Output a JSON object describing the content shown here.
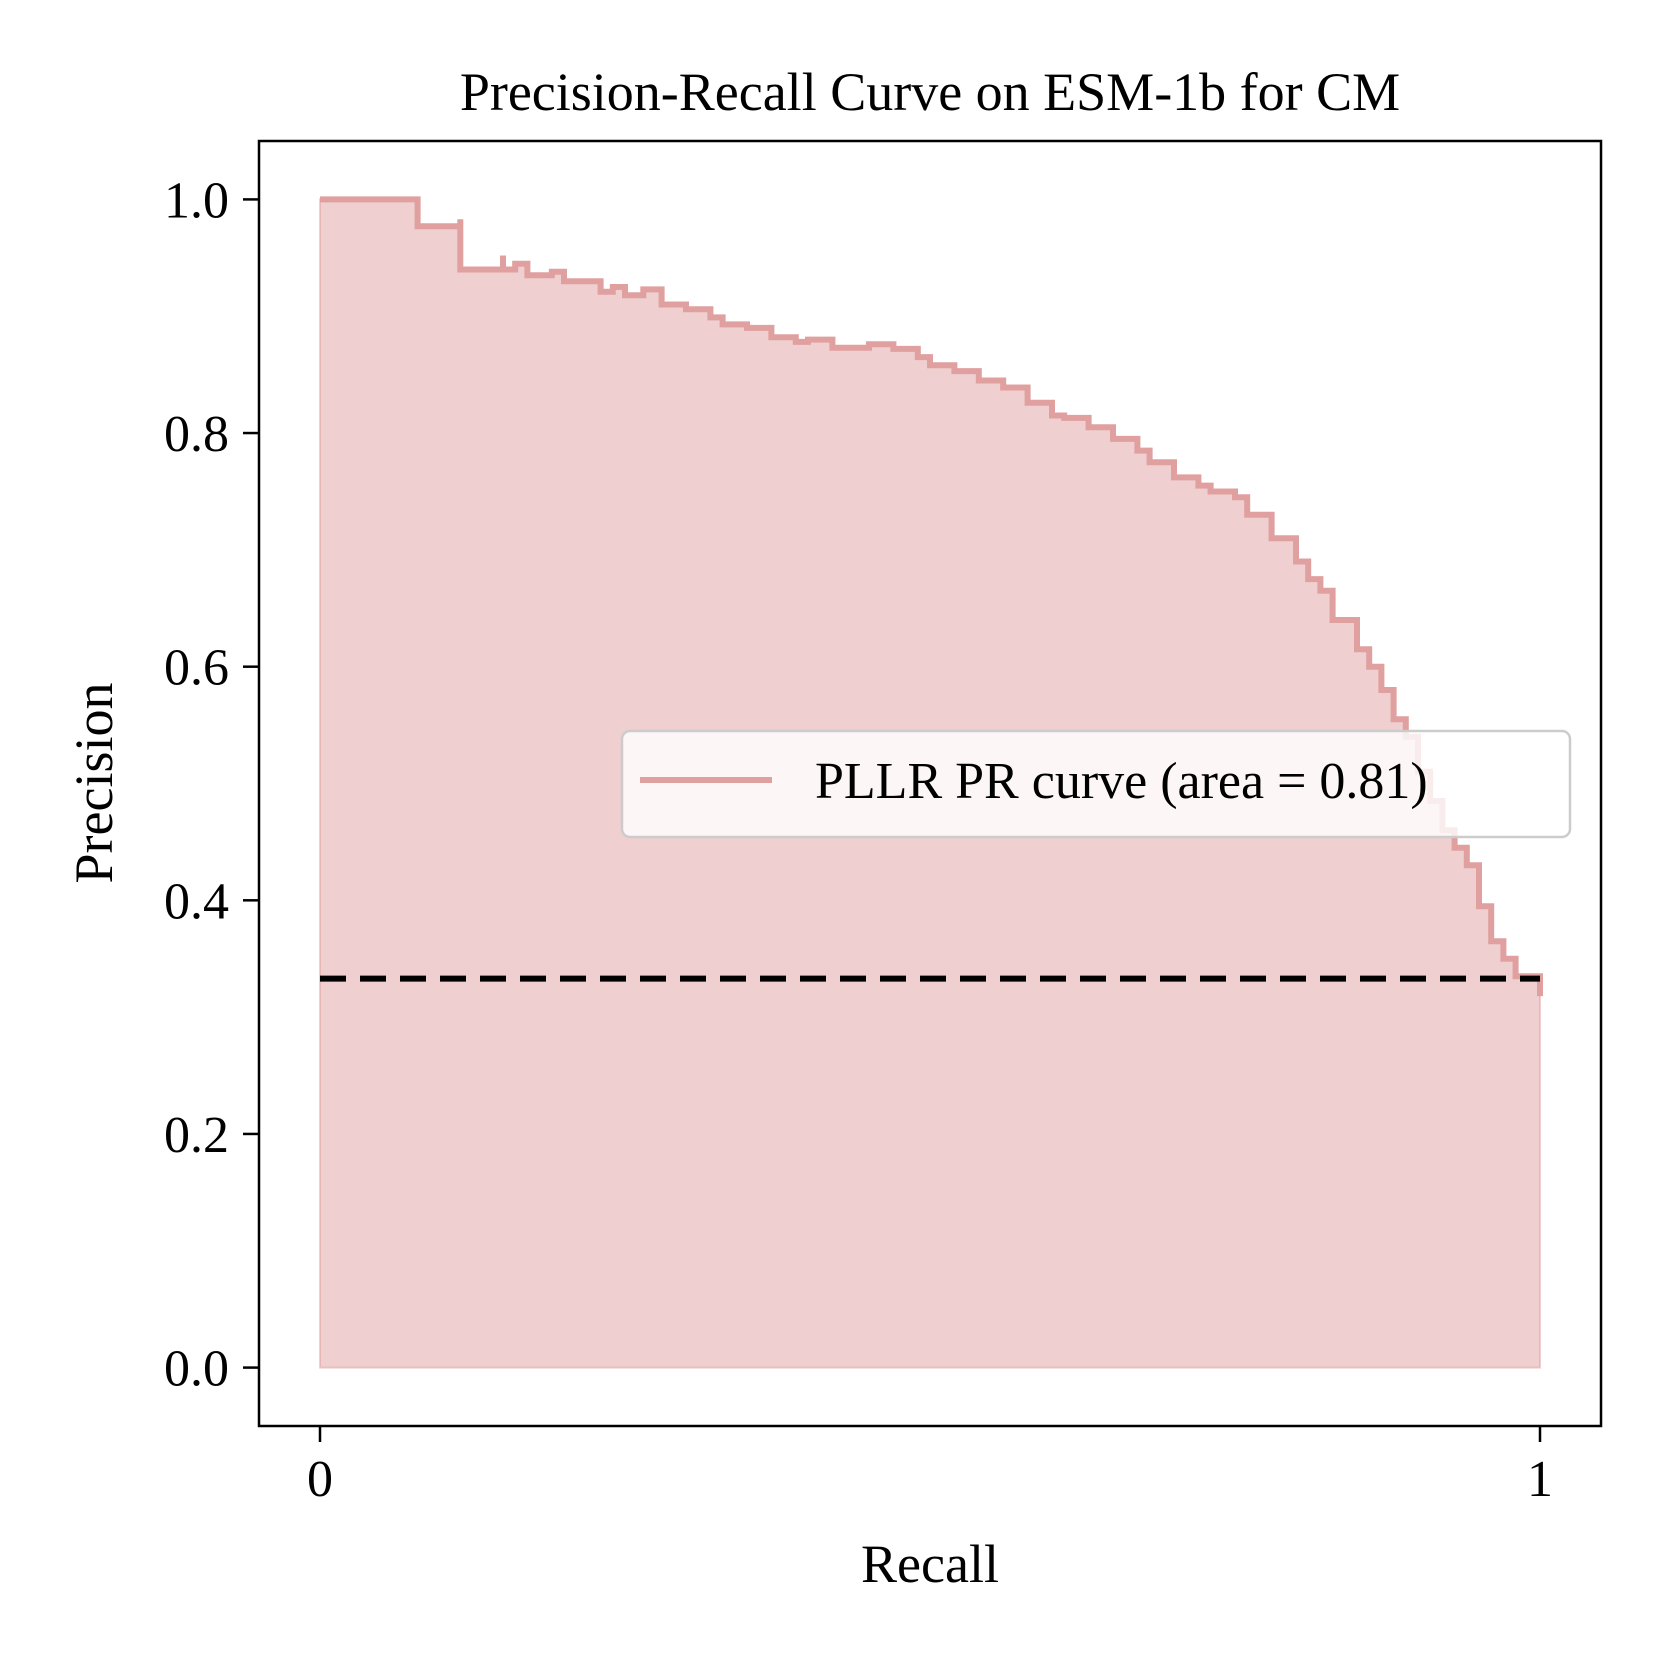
{
  "chart_data": {
    "type": "line",
    "title": "Precision-Recall Curve on ESM-1b for CM",
    "xlabel": "Recall",
    "ylabel": "Precision",
    "xlim": [
      -0.05,
      1.05
    ],
    "ylim": [
      -0.05,
      1.05
    ],
    "x_ticks": [
      {
        "value": 0,
        "label": "0"
      },
      {
        "value": 1,
        "label": "1"
      }
    ],
    "y_ticks": [
      {
        "value": 0.0,
        "label": "0.0"
      },
      {
        "value": 0.2,
        "label": "0.2"
      },
      {
        "value": 0.4,
        "label": "0.4"
      },
      {
        "value": 0.6,
        "label": "0.6"
      },
      {
        "value": 0.8,
        "label": "0.8"
      },
      {
        "value": 1.0,
        "label": "1.0"
      }
    ],
    "grid": false,
    "legend_position": "center-right",
    "series": [
      {
        "name": "PLLR PR curve (area = 0.81)",
        "color": "#e0a0a0",
        "fill": true,
        "step": "post",
        "x": [
          0,
          0.08,
          0.08,
          0.115,
          0.115,
          0.15,
          0.15,
          0.16,
          0.17,
          0.19,
          0.2,
          0.215,
          0.23,
          0.24,
          0.25,
          0.265,
          0.28,
          0.3,
          0.32,
          0.33,
          0.35,
          0.37,
          0.39,
          0.4,
          0.42,
          0.45,
          0.47,
          0.49,
          0.5,
          0.52,
          0.54,
          0.56,
          0.58,
          0.6,
          0.61,
          0.63,
          0.65,
          0.67,
          0.68,
          0.7,
          0.72,
          0.73,
          0.75,
          0.76,
          0.78,
          0.8,
          0.81,
          0.82,
          0.83,
          0.85,
          0.86,
          0.87,
          0.88,
          0.89,
          0.9,
          0.91,
          0.92,
          0.93,
          0.94,
          0.95,
          0.96,
          0.97,
          0.98,
          1.0
        ],
        "y": [
          1.0,
          1.0,
          0.977,
          0.983,
          0.94,
          0.952,
          0.94,
          0.945,
          0.935,
          0.938,
          0.93,
          0.93,
          0.921,
          0.925,
          0.918,
          0.923,
          0.91,
          0.906,
          0.899,
          0.893,
          0.89,
          0.882,
          0.878,
          0.88,
          0.873,
          0.876,
          0.872,
          0.865,
          0.858,
          0.853,
          0.845,
          0.839,
          0.826,
          0.815,
          0.813,
          0.805,
          0.795,
          0.785,
          0.775,
          0.762,
          0.755,
          0.75,
          0.745,
          0.73,
          0.71,
          0.69,
          0.675,
          0.665,
          0.64,
          0.615,
          0.6,
          0.58,
          0.555,
          0.54,
          0.51,
          0.485,
          0.46,
          0.445,
          0.43,
          0.395,
          0.365,
          0.35,
          0.335,
          0.318
        ]
      },
      {
        "name": "",
        "color": "#000000",
        "dashed": true,
        "x": [
          0,
          1
        ],
        "y": [
          0.333,
          0.333
        ]
      }
    ]
  }
}
